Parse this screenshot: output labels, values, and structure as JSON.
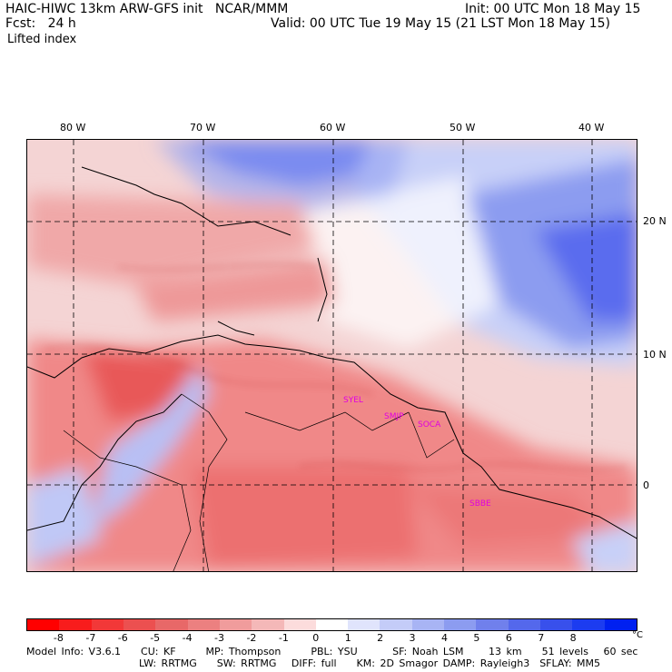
{
  "header": {
    "title": "HAIC-HIWC 13km ARW-GFS init   NCAR/MMM",
    "init": "Init: 00 UTC Mon 18 May 15",
    "fcst": "Fcst:   24 h",
    "valid": "Valid: 00 UTC Tue 19 May 15 (21 LST Mon 18 May 15)",
    "field": "Lifted index"
  },
  "axes": {
    "lon_labels": [
      "80 W",
      "70 W",
      "60 W",
      "50 W",
      "40 W"
    ],
    "lat_labels": [
      "20 N",
      "10 N",
      "0"
    ]
  },
  "stations": [
    "SYEL",
    "SMJP",
    "SOCA",
    "SBBE"
  ],
  "colorbar": {
    "ticks": [
      "-8",
      "-7",
      "-6",
      "-5",
      "-4",
      "-3",
      "-2",
      "-1",
      "0",
      "1",
      "2",
      "3",
      "4",
      "5",
      "6",
      "7",
      "8"
    ],
    "unit": "°C",
    "colors": [
      "#ff0000",
      "#f81c1c",
      "#f23838",
      "#ec5050",
      "#e86868",
      "#ec8080",
      "#f09c9c",
      "#f4b8b8",
      "#fcdcdc",
      "#ffffff",
      "#e0e4fc",
      "#c4ccf8",
      "#a8b4f4",
      "#8c9cf0",
      "#7080ec",
      "#5468ec",
      "#3850ec",
      "#1c3cf0",
      "#0020f0"
    ]
  },
  "footer": {
    "line1": "Model Info: V3.6.1    CU: KF      MP: Thompson      PBL: YSU       SF: Noah LSM     13 km    51 levels   60 sec",
    "line2": "LW: RRTMG    SW: RRTMG   DIFF: full    KM: 2D Smagor DAMP: Rayleigh3  SFLAY: MM5"
  }
}
